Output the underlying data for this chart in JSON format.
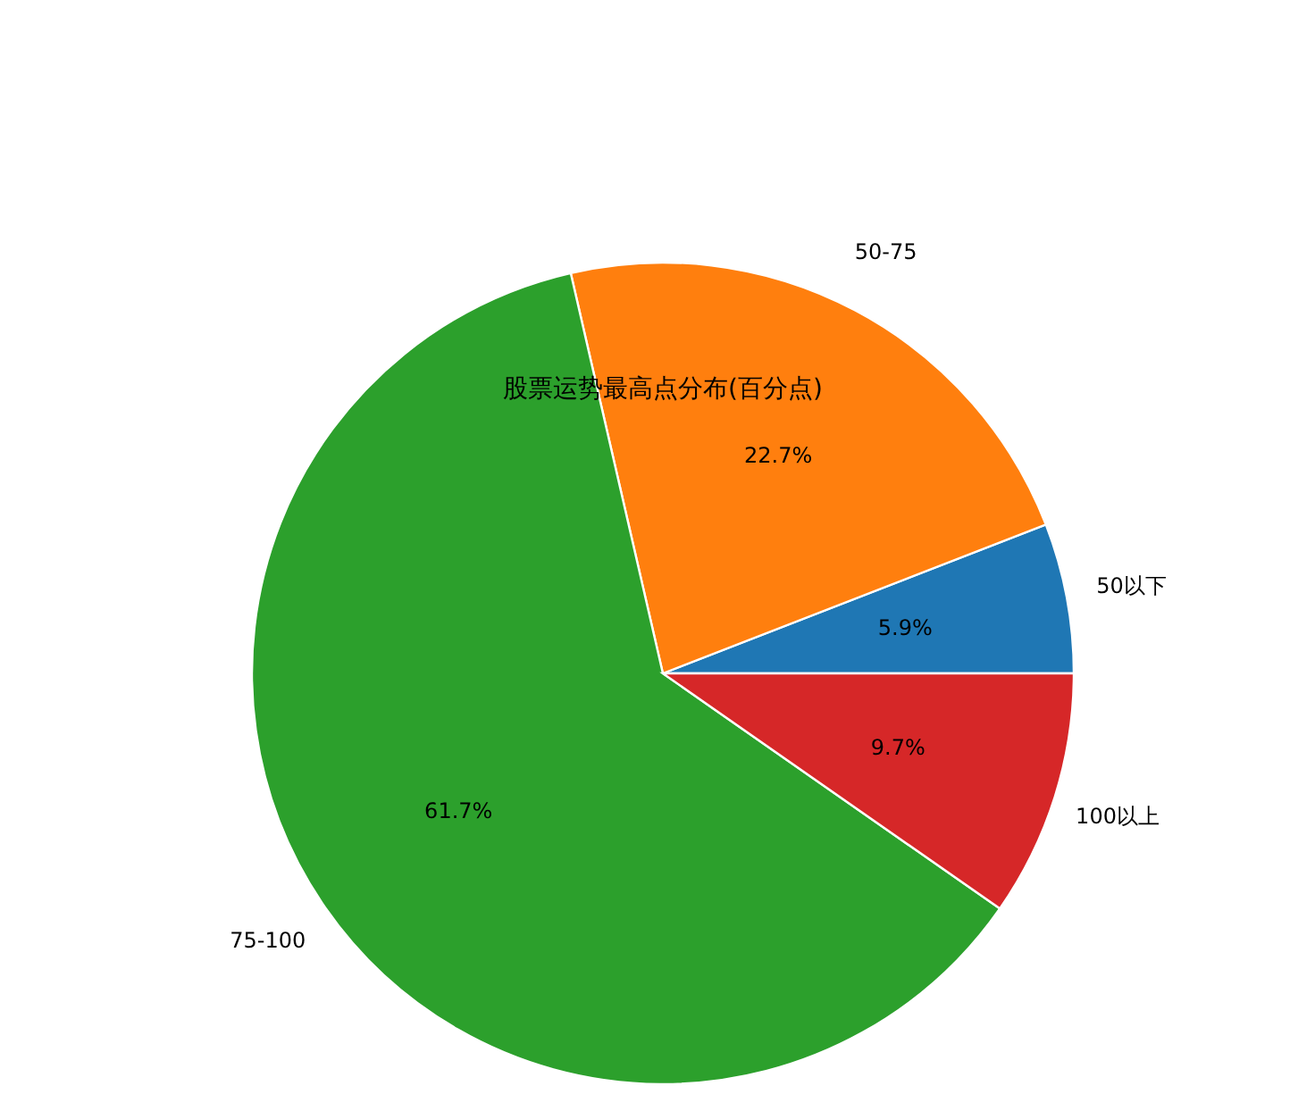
{
  "chart_data": {
    "type": "pie",
    "title": "股票运势最高点分布(百分点)",
    "categories": [
      "50以下",
      "50-75",
      "75-100",
      "100以上"
    ],
    "values": [
      5.9,
      22.7,
      61.7,
      9.7
    ],
    "value_labels": [
      "5.9%",
      "22.7%",
      "61.7%",
      "9.7%"
    ],
    "colors": [
      "#1f77b4",
      "#ff7f0e",
      "#2ca02c",
      "#d62728"
    ]
  }
}
